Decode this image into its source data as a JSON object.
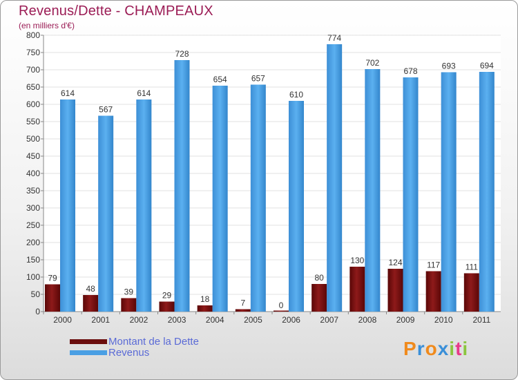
{
  "header": {
    "title": "Revenus/Dette - CHAMPEAUX",
    "subtitle": "(en milliers d'€)"
  },
  "chart_data": {
    "type": "bar",
    "title": "Revenus/Dette - CHAMPEAUX",
    "ylabel": "(en milliers d'€)",
    "xlabel": "",
    "ylim": [
      0,
      800
    ],
    "yticks": [
      0,
      50,
      100,
      150,
      200,
      250,
      300,
      350,
      400,
      450,
      500,
      550,
      600,
      650,
      700,
      750,
      800
    ],
    "grid": true,
    "categories": [
      "2000",
      "2001",
      "2002",
      "2003",
      "2004",
      "2005",
      "2006",
      "2007",
      "2008",
      "2009",
      "2010",
      "2011"
    ],
    "series": [
      {
        "name": "Montant de la Dette",
        "color": "#7a1010",
        "values": [
          79,
          48,
          39,
          29,
          18,
          7,
          0,
          80,
          130,
          124,
          117,
          111
        ]
      },
      {
        "name": "Revenus",
        "color": "#4a9fe4",
        "values": [
          614,
          567,
          614,
          728,
          654,
          657,
          610,
          774,
          702,
          678,
          693,
          694
        ]
      }
    ],
    "legend_position": "bottom-left"
  },
  "logo": {
    "letters": [
      "P",
      "r",
      "o",
      "x",
      "i",
      "t",
      "i"
    ],
    "colors": [
      "#f08a1c",
      "#3a8fd8",
      "#f08a1c",
      "#3a8fd8",
      "#8bc53f",
      "#e83a8a",
      "#8bc53f"
    ]
  }
}
